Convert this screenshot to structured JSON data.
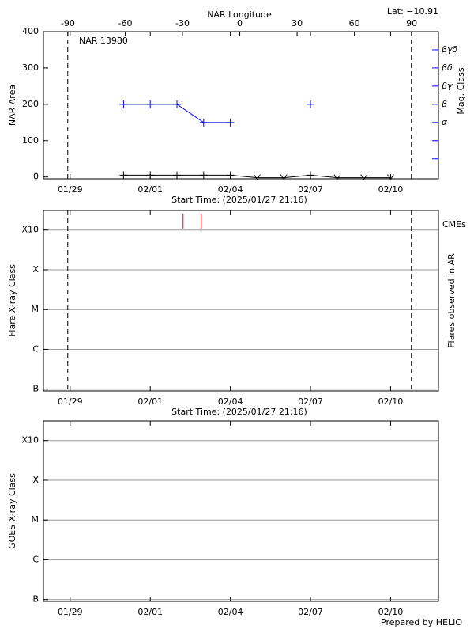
{
  "chart_data": [
    {
      "type": "line",
      "title": "NAR 13980",
      "subtitle": "Lat: −10.91",
      "x2_label": "NAR Longitude",
      "x_label": "Start Time: (2025/01/27 21:16)",
      "y_label": "NAR Area",
      "y2_label": "Mag. Class",
      "x": [
        "2025-01-31",
        "2025-02-01",
        "2025-02-02",
        "2025-02-03",
        "2025-02-04",
        "2025-02-05",
        "2025-02-06",
        "2025-02-07",
        "2025-02-08",
        "2025-02-09",
        "2025-02-10"
      ],
      "series": [
        {
          "color": "#0000ff",
          "values": [
            200,
            200,
            200,
            150,
            150,
            null,
            null,
            200,
            null,
            null,
            null
          ],
          "markers": [
            "+",
            "+",
            "+",
            "+",
            "+",
            "+",
            "+",
            "+",
            "+",
            "+",
            "+"
          ]
        },
        {
          "color": "#000000",
          "values": [
            5,
            5,
            5,
            5,
            5,
            -2,
            -2,
            5,
            -2,
            -2,
            -2
          ],
          "markers": [
            "+",
            "+",
            "+",
            "+",
            "+",
            "v",
            "v",
            "+",
            "v",
            "v",
            "v"
          ]
        }
      ],
      "xlim": [
        "2025-01-28T00:00",
        "2025-02-11T19:00"
      ],
      "xticks": [
        {
          "value": "2025-01-29",
          "label": "01/29"
        },
        {
          "value": "2025-02-01",
          "label": "02/01"
        },
        {
          "value": "2025-02-04",
          "label": "02/04"
        },
        {
          "value": "2025-02-07",
          "label": "02/07"
        },
        {
          "value": "2025-02-10",
          "label": "02/10"
        }
      ],
      "x2lim": [
        -102.8,
        104
      ],
      "x2ticks": [
        -90,
        -60,
        -30,
        0,
        30,
        60,
        90
      ],
      "ylim": [
        -5,
        400
      ],
      "yticks": [
        0,
        100,
        200,
        300,
        400
      ],
      "y2lim": [
        -5,
        400
      ],
      "y2color": "#0000ff",
      "y2ticks": [
        {
          "value": 150,
          "label": "α"
        },
        {
          "value": 200,
          "label": "β"
        },
        {
          "value": 250,
          "label": "βγ"
        },
        {
          "value": 300,
          "label": "βδ"
        },
        {
          "value": 350,
          "label": "βγδ"
        }
      ],
      "y2minor": [
        50,
        100
      ],
      "limb_lines": [
        "2025-01-28T21:50",
        "2025-02-10T18:40"
      ]
    },
    {
      "type": "flare",
      "x_label": "Start Time: (2025/01/27 21:16)",
      "y_label": "Flare X-ray Class",
      "y2_label": "Flares observed in AR",
      "xlim": [
        "2025-01-28T00:00",
        "2025-02-11T19:00"
      ],
      "xticks": [
        {
          "value": "2025-01-29",
          "label": "01/29"
        },
        {
          "value": "2025-02-01",
          "label": "02/01"
        },
        {
          "value": "2025-02-04",
          "label": "02/04"
        },
        {
          "value": "2025-02-07",
          "label": "02/07"
        },
        {
          "value": "2025-02-10",
          "label": "02/10"
        }
      ],
      "log_y": true,
      "grid": true,
      "ylim": [
        9e-08,
        0.0031
      ],
      "yticks": [
        {
          "value": 1e-07,
          "label": "B"
        },
        {
          "value": 1e-06,
          "label": "C"
        },
        {
          "value": 1e-05,
          "label": "M"
        },
        {
          "value": 0.0001,
          "label": "X"
        },
        {
          "value": 0.001,
          "label": "X10"
        }
      ],
      "cmes": {
        "name": "CMEs",
        "color": "#ff0000",
        "x": [
          "2025-02-02T05:30",
          "2025-02-02T21:50"
        ]
      },
      "limb_lines": [
        "2025-01-28T21:50",
        "2025-02-10T18:40"
      ]
    },
    {
      "type": "goes",
      "y_label": "GOES X-ray Class",
      "xlim": [
        "2025-01-28T00:00",
        "2025-02-11T19:00"
      ],
      "xticks": [
        {
          "value": "2025-01-29",
          "label": "01/29"
        },
        {
          "value": "2025-02-01",
          "label": "02/01"
        },
        {
          "value": "2025-02-04",
          "label": "02/04"
        },
        {
          "value": "2025-02-07",
          "label": "02/07"
        },
        {
          "value": "2025-02-10",
          "label": "02/10"
        }
      ],
      "log_y": true,
      "grid": true,
      "ylim": [
        9e-08,
        0.0031
      ],
      "yticks": [
        {
          "value": 1e-07,
          "label": "B"
        },
        {
          "value": 1e-06,
          "label": "C"
        },
        {
          "value": 1e-05,
          "label": "M"
        },
        {
          "value": 0.0001,
          "label": "X"
        },
        {
          "value": 0.001,
          "label": "X10"
        }
      ]
    }
  ],
  "footer": "Prepared by HELIO"
}
